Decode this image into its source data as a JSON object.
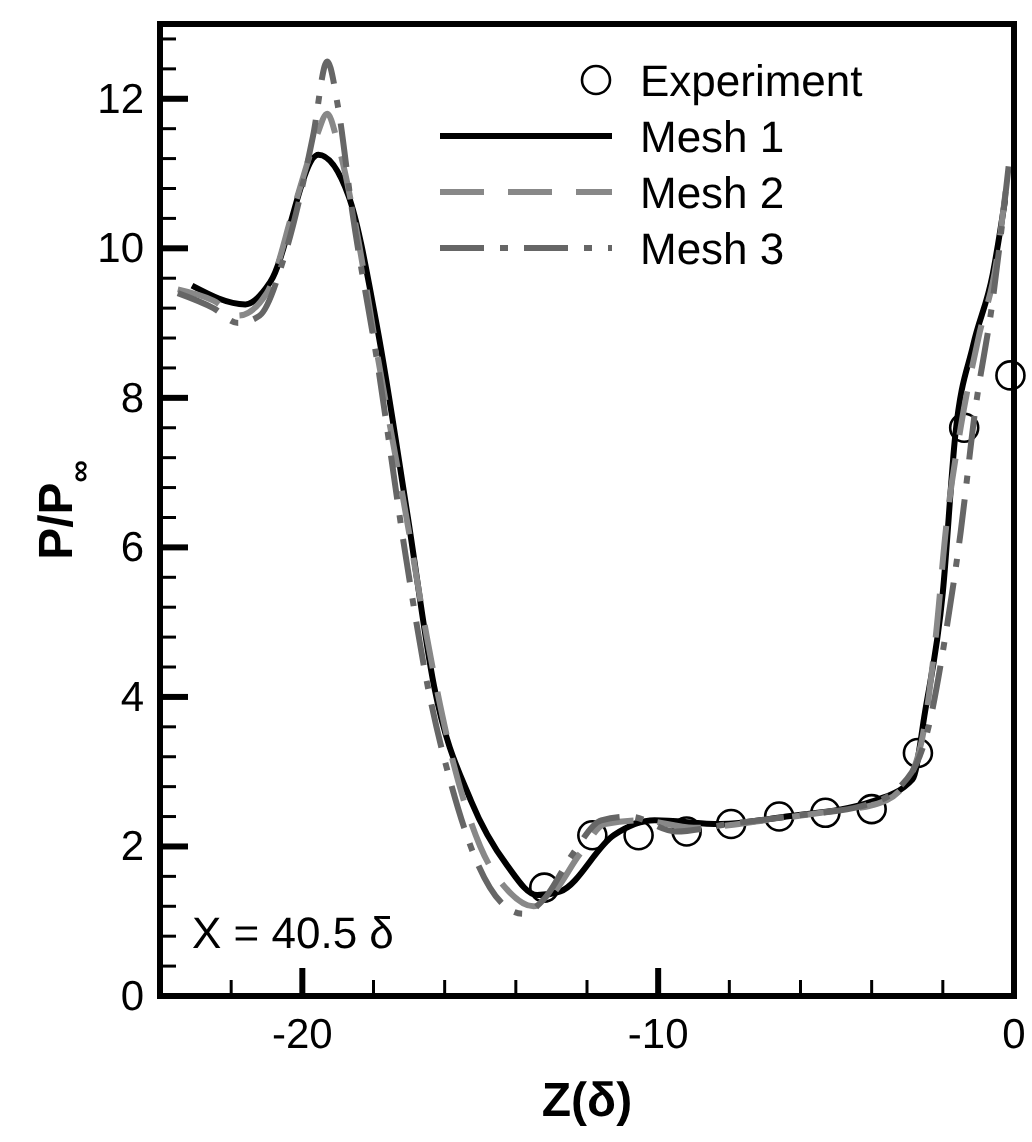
{
  "chart_data": {
    "type": "line",
    "xlabel": "Z(δ)",
    "ylabel": "P/P$_{∞}$",
    "annotations": [
      "X = 40.5 δ"
    ],
    "xlim": [
      -24,
      0
    ],
    "ylim": [
      0,
      13
    ],
    "xticks": [
      {
        "value": -22,
        "label": null
      },
      -20,
      {
        "value": -18,
        "label": null
      },
      {
        "value": -16,
        "label": null
      },
      {
        "value": -14,
        "label": null
      },
      {
        "value": -12,
        "label": null
      },
      -10,
      {
        "value": -8,
        "label": null
      },
      {
        "value": -6,
        "label": null
      },
      {
        "value": -4,
        "label": null
      },
      {
        "value": -2,
        "label": null
      },
      0
    ],
    "yticks": [
      0,
      {
        "value": 0.4,
        "label": null
      },
      {
        "value": 0.8,
        "label": null
      },
      {
        "value": 1.2,
        "label": null
      },
      {
        "value": 1.6,
        "label": null
      },
      2,
      {
        "value": 2.4,
        "label": null
      },
      {
        "value": 2.8,
        "label": null
      },
      {
        "value": 3.2,
        "label": null
      },
      {
        "value": 3.6,
        "label": null
      },
      4,
      {
        "value": 4.4,
        "label": null
      },
      {
        "value": 4.8,
        "label": null
      },
      {
        "value": 5.2,
        "label": null
      },
      {
        "value": 5.6,
        "label": null
      },
      6,
      {
        "value": 6.4,
        "label": null
      },
      {
        "value": 6.8,
        "label": null
      },
      {
        "value": 7.2,
        "label": null
      },
      {
        "value": 7.6,
        "label": null
      },
      8,
      {
        "value": 8.4,
        "label": null
      },
      {
        "value": 8.8,
        "label": null
      },
      {
        "value": 9.2,
        "label": null
      },
      {
        "value": 9.6,
        "label": null
      },
      10,
      {
        "value": 10.4,
        "label": null
      },
      {
        "value": 10.8,
        "label": null
      },
      {
        "value": 11.2,
        "label": null
      },
      {
        "value": 11.6,
        "label": null
      },
      12,
      {
        "value": 12.4,
        "label": null
      },
      {
        "value": 12.8,
        "label": null
      }
    ],
    "grid": false,
    "legend": "top right",
    "series": [
      {
        "name": "Experiment",
        "type": "scatter",
        "marker": "circle",
        "color": "#000000",
        "x": [
          -13.2,
          -11.85,
          -10.55,
          -9.2,
          -7.95,
          -6.6,
          -5.3,
          -4.0,
          -2.7,
          -1.4,
          -0.1
        ],
        "values": [
          1.45,
          2.15,
          2.15,
          2.2,
          2.3,
          2.4,
          2.45,
          2.5,
          3.25,
          7.6,
          8.3
        ]
      },
      {
        "name": "Mesh 1",
        "line_style": "solid",
        "color": "#000000",
        "x": [
          -23.1,
          -21.6,
          -20.9,
          -19.55,
          -18.7,
          -17.9,
          -17.05,
          -16.3,
          -15.25,
          -14.25,
          -13.4,
          -12.75,
          -11.25,
          -10.1,
          -8.25,
          -6.4,
          -4.0,
          -2.85,
          -2.5,
          -2.0,
          -1.65,
          -1.15,
          -0.6,
          -0.25
        ],
        "values": [
          9.5,
          9.25,
          9.55,
          11.25,
          10.7,
          8.95,
          6.45,
          4.15,
          2.6,
          1.75,
          1.35,
          1.4,
          2.15,
          2.35,
          2.3,
          2.4,
          2.6,
          2.9,
          3.8,
          5.4,
          7.5,
          8.7,
          9.65,
          10.65
        ]
      },
      {
        "name": "Mesh 2",
        "line_style": "dashed",
        "color": "#888888",
        "x": [
          -23.5,
          -22.5,
          -21.8,
          -21,
          -20.2,
          -19.6,
          -19.3,
          -19,
          -18.5,
          -17.9,
          -17,
          -16.5,
          -15.8,
          -15,
          -14.2,
          -13.5,
          -13,
          -12.2,
          -11.5,
          -10.5,
          -9,
          -7,
          -5,
          -4,
          -3.2,
          -2.6,
          -2.2,
          -1.9,
          -1.5,
          -1,
          -0.5,
          -0.2
        ],
        "values": [
          9.45,
          9.3,
          9.1,
          9.4,
          10.6,
          11.5,
          11.8,
          11.4,
          10.3,
          8.6,
          6.2,
          4.8,
          3.2,
          2.0,
          1.4,
          1.2,
          1.35,
          1.9,
          2.3,
          2.35,
          2.25,
          2.35,
          2.48,
          2.55,
          2.75,
          3.4,
          4.8,
          6.3,
          7.6,
          8.8,
          9.8,
          10.9
        ]
      },
      {
        "name": "Mesh 3",
        "line_style": "dashdot",
        "color": "#666666",
        "x": [
          -23.5,
          -22.5,
          -21.8,
          -21.2,
          -20.5,
          -19.7,
          -19.3,
          -19,
          -18.6,
          -17.9,
          -17.1,
          -16.5,
          -15.8,
          -15.1,
          -14.3,
          -13.8,
          -13.2,
          -12.4,
          -11.6,
          -10.8,
          -9.5,
          -8,
          -6,
          -4.2,
          -3.2,
          -2.4,
          -1.9,
          -1.5,
          -1.1,
          -0.6,
          -0.15
        ],
        "values": [
          9.4,
          9.2,
          9.0,
          9.1,
          9.9,
          11.5,
          12.5,
          11.9,
          10.5,
          8.5,
          5.9,
          4.2,
          2.8,
          1.8,
          1.2,
          1.1,
          1.3,
          1.9,
          2.35,
          2.4,
          2.2,
          2.3,
          2.42,
          2.55,
          2.8,
          3.6,
          4.9,
          6.2,
          7.8,
          9.3,
          11.1
        ]
      }
    ]
  }
}
